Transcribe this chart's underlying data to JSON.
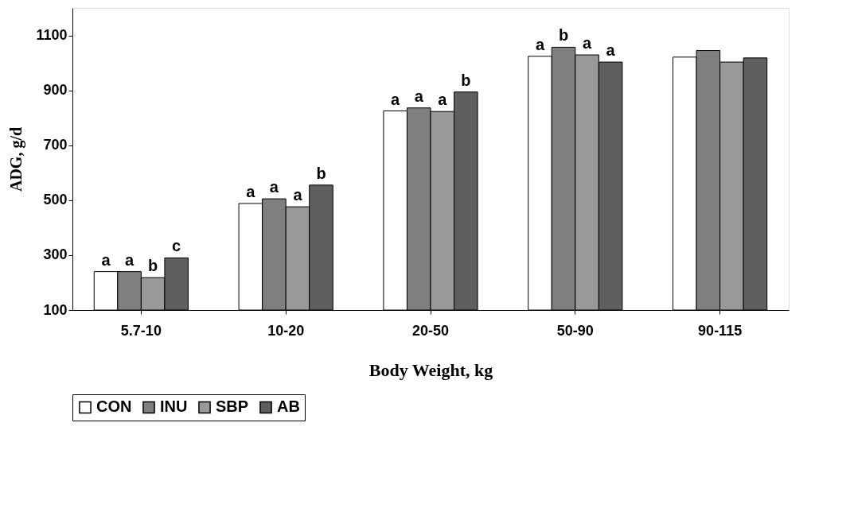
{
  "chart_data": {
    "type": "bar",
    "xlabel": "Body Weight, kg",
    "ylabel": "ADG, g/d",
    "categories": [
      "5.7-10",
      "10-20",
      "20-50",
      "50-90",
      "90-115"
    ],
    "series": [
      {
        "name": "CON",
        "color": "#ffffff",
        "values": [
          240,
          488,
          825,
          1024,
          1021
        ],
        "value_labels": [
          "a",
          "a",
          "a",
          "a",
          null
        ]
      },
      {
        "name": "INU",
        "color": "#7f7f7f",
        "values": [
          240,
          505,
          836,
          1057,
          1045
        ],
        "value_labels": [
          "a",
          "a",
          "a",
          "b",
          null
        ]
      },
      {
        "name": "SBP",
        "color": "#999999",
        "values": [
          218,
          476,
          823,
          1029,
          1003
        ],
        "value_labels": [
          "b",
          "a",
          "a",
          "a",
          null
        ]
      },
      {
        "name": "AB",
        "color": "#5f5f5f",
        "values": [
          290,
          555,
          894,
          1003,
          1018
        ],
        "value_labels": [
          "c",
          "b",
          "b",
          "a",
          null
        ]
      }
    ],
    "ylim": [
      100,
      1200
    ],
    "yticks": [
      100,
      300,
      500,
      700,
      900,
      1100
    ],
    "grid": false,
    "legend": "bottom"
  }
}
